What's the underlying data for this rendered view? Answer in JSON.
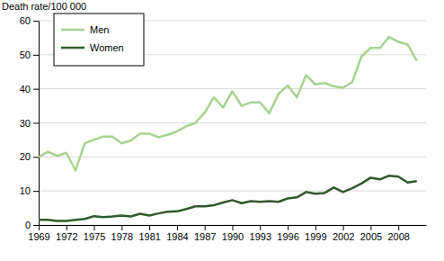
{
  "chart_data": {
    "type": "line",
    "ylabel": "Death rate/100 000",
    "x": [
      1969,
      1970,
      1971,
      1972,
      1973,
      1974,
      1975,
      1976,
      1977,
      1978,
      1979,
      1980,
      1981,
      1982,
      1983,
      1984,
      1985,
      1986,
      1987,
      1988,
      1989,
      1990,
      1991,
      1992,
      1993,
      1994,
      1995,
      1996,
      1997,
      1998,
      1999,
      2000,
      2001,
      2002,
      2003,
      2004,
      2005,
      2006,
      2007,
      2008,
      2009,
      2010
    ],
    "series": [
      {
        "name": "Men",
        "color": "#a6d38f",
        "values": [
          20.0,
          21.5,
          20.3,
          21.2,
          16.0,
          24.0,
          25.0,
          26.0,
          26.0,
          24.0,
          24.8,
          26.8,
          26.8,
          25.8,
          26.5,
          27.5,
          29.0,
          30.0,
          33.0,
          37.5,
          34.5,
          39.3,
          35.0,
          36.0,
          36.0,
          32.8,
          38.5,
          41.0,
          37.5,
          44.0,
          41.3,
          41.7,
          40.7,
          40.3,
          42.0,
          49.5,
          52.0,
          52.0,
          55.2,
          53.8,
          53.0,
          48.2
        ]
      },
      {
        "name": "Women",
        "color": "#2f5b2b",
        "values": [
          1.5,
          1.5,
          1.2,
          1.2,
          1.5,
          1.8,
          2.6,
          2.3,
          2.5,
          2.8,
          2.5,
          3.3,
          2.8,
          3.4,
          3.9,
          4.0,
          4.7,
          5.5,
          5.5,
          5.8,
          6.6,
          7.3,
          6.4,
          7.0,
          6.8,
          7.0,
          6.8,
          7.8,
          8.1,
          9.7,
          9.2,
          9.4,
          11.0,
          9.7,
          10.8,
          12.2,
          13.9,
          13.4,
          14.5,
          14.2,
          12.5,
          12.9
        ]
      }
    ],
    "xlim": [
      1969,
      2011
    ],
    "xticks": [
      1969,
      1972,
      1975,
      1978,
      1981,
      1984,
      1987,
      1990,
      1993,
      1996,
      1999,
      2002,
      2005,
      2008
    ],
    "ylim": [
      0,
      60
    ],
    "yticks": [
      0,
      10,
      20,
      30,
      40,
      50,
      60
    ],
    "grid": true,
    "legend": "upper left"
  }
}
